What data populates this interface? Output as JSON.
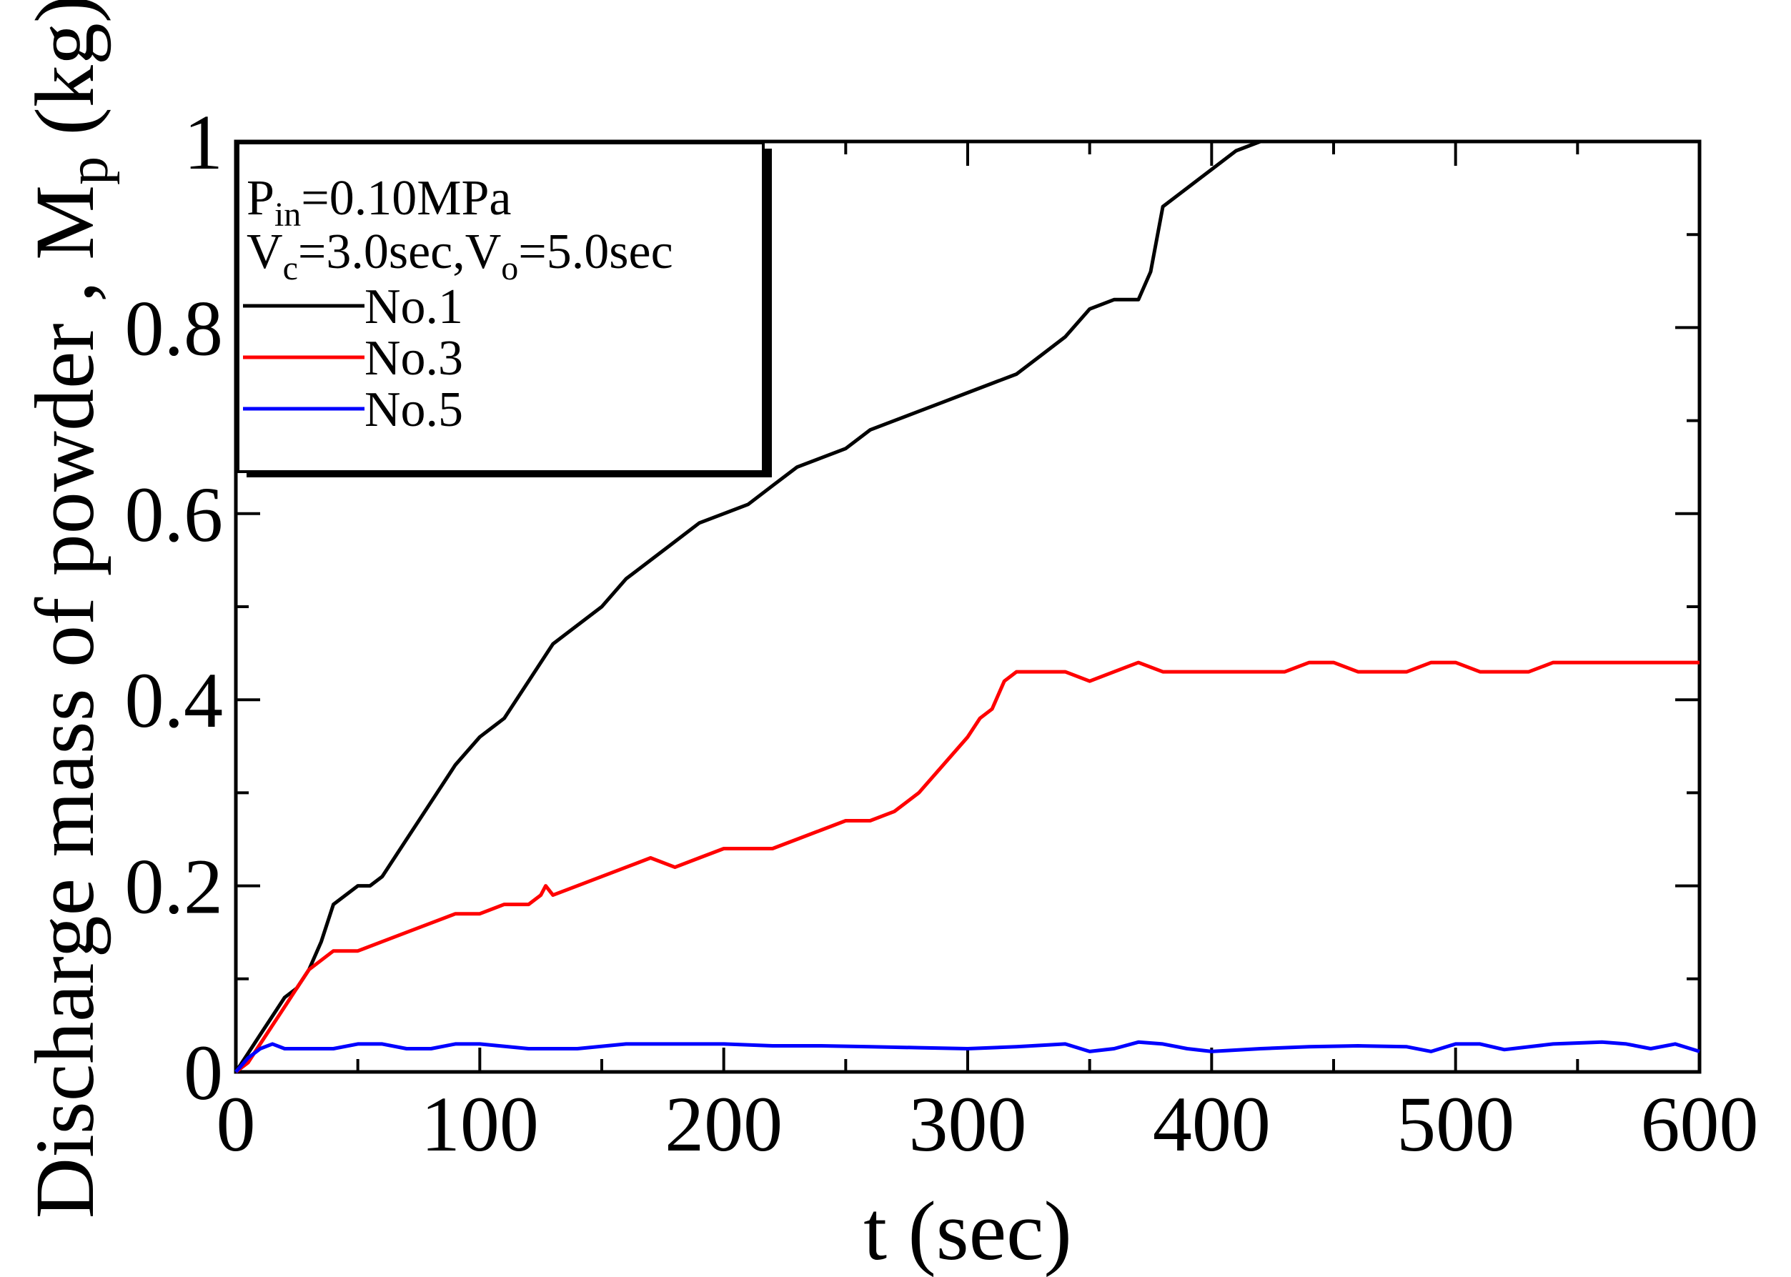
{
  "chart_data": {
    "type": "line",
    "title": "",
    "xlabel": "t (sec)",
    "ylabel_main": "Discharge mass of powder , M",
    "ylabel_sub": "p",
    "ylabel_unit": " (kg)",
    "xlim": [
      0,
      600
    ],
    "ylim": [
      0,
      1
    ],
    "xticks": [
      0,
      100,
      200,
      300,
      400,
      500,
      600
    ],
    "xtick_labels": [
      "0",
      "100",
      "200",
      "300",
      "400",
      "500",
      "600"
    ],
    "yticks": [
      0,
      0.2,
      0.4,
      0.6,
      0.8,
      1
    ],
    "ytick_labels": [
      "0",
      "0.2",
      "0.4",
      "0.6",
      "0.8",
      "1"
    ],
    "legend_position": "top-left",
    "conditions": {
      "line1_main": "P",
      "line1_sub": "in",
      "line1_rest": "=0.10MPa",
      "line2_a": "V",
      "line2_a_sub": "c",
      "line2_b": "=3.0sec,V",
      "line2_b_sub": "o",
      "line2_c": "=5.0sec"
    },
    "series": [
      {
        "name": "No.1",
        "color": "#000000",
        "x": [
          0,
          5,
          10,
          15,
          20,
          25,
          30,
          35,
          40,
          45,
          50,
          55,
          60,
          70,
          80,
          90,
          100,
          110,
          120,
          130,
          140,
          150,
          160,
          170,
          180,
          190,
          200,
          210,
          220,
          230,
          240,
          250,
          260,
          270,
          280,
          290,
          300,
          310,
          320,
          330,
          340,
          350,
          360,
          370,
          375,
          380,
          390,
          400,
          410,
          420
        ],
        "values": [
          0,
          0.02,
          0.04,
          0.06,
          0.08,
          0.09,
          0.11,
          0.14,
          0.18,
          0.19,
          0.2,
          0.2,
          0.21,
          0.25,
          0.29,
          0.33,
          0.36,
          0.38,
          0.42,
          0.46,
          0.48,
          0.5,
          0.53,
          0.55,
          0.57,
          0.59,
          0.6,
          0.61,
          0.63,
          0.65,
          0.66,
          0.67,
          0.69,
          0.7,
          0.71,
          0.72,
          0.73,
          0.74,
          0.75,
          0.77,
          0.79,
          0.82,
          0.83,
          0.83,
          0.86,
          0.93,
          0.95,
          0.97,
          0.99,
          1.0
        ]
      },
      {
        "name": "No.3",
        "color": "#ff0000",
        "x": [
          0,
          5,
          10,
          15,
          20,
          25,
          30,
          40,
          50,
          60,
          70,
          80,
          90,
          100,
          110,
          120,
          125,
          127,
          130,
          140,
          150,
          160,
          170,
          180,
          190,
          200,
          210,
          220,
          230,
          240,
          250,
          260,
          270,
          280,
          290,
          300,
          305,
          310,
          315,
          320,
          330,
          340,
          350,
          360,
          370,
          380,
          390,
          400,
          410,
          420,
          430,
          440,
          450,
          460,
          470,
          480,
          490,
          500,
          510,
          520,
          530,
          540,
          550,
          560,
          570,
          580,
          590,
          600
        ],
        "values": [
          0,
          0.01,
          0.03,
          0.05,
          0.07,
          0.09,
          0.11,
          0.13,
          0.13,
          0.14,
          0.15,
          0.16,
          0.17,
          0.17,
          0.18,
          0.18,
          0.19,
          0.2,
          0.19,
          0.2,
          0.21,
          0.22,
          0.23,
          0.22,
          0.23,
          0.24,
          0.24,
          0.24,
          0.25,
          0.26,
          0.27,
          0.27,
          0.28,
          0.3,
          0.33,
          0.36,
          0.38,
          0.39,
          0.42,
          0.43,
          0.43,
          0.43,
          0.42,
          0.43,
          0.44,
          0.43,
          0.43,
          0.43,
          0.43,
          0.43,
          0.43,
          0.44,
          0.44,
          0.43,
          0.43,
          0.43,
          0.44,
          0.44,
          0.43,
          0.43,
          0.43,
          0.44,
          0.44,
          0.44,
          0.44,
          0.44,
          0.44,
          0.44
        ]
      },
      {
        "name": "No.5",
        "color": "#0000ff",
        "x": [
          0,
          5,
          10,
          15,
          20,
          30,
          40,
          50,
          60,
          70,
          80,
          90,
          100,
          120,
          140,
          160,
          180,
          200,
          220,
          240,
          260,
          280,
          300,
          320,
          340,
          350,
          360,
          370,
          380,
          390,
          400,
          420,
          440,
          460,
          480,
          490,
          500,
          510,
          520,
          540,
          560,
          570,
          580,
          590,
          600
        ],
        "values": [
          0,
          0.015,
          0.025,
          0.03,
          0.025,
          0.025,
          0.025,
          0.03,
          0.03,
          0.025,
          0.025,
          0.03,
          0.03,
          0.025,
          0.025,
          0.03,
          0.03,
          0.03,
          0.028,
          0.028,
          0.027,
          0.026,
          0.025,
          0.027,
          0.03,
          0.022,
          0.025,
          0.032,
          0.03,
          0.025,
          0.022,
          0.025,
          0.027,
          0.028,
          0.027,
          0.022,
          0.03,
          0.03,
          0.024,
          0.03,
          0.032,
          0.03,
          0.025,
          0.03,
          0.022
        ]
      }
    ]
  }
}
